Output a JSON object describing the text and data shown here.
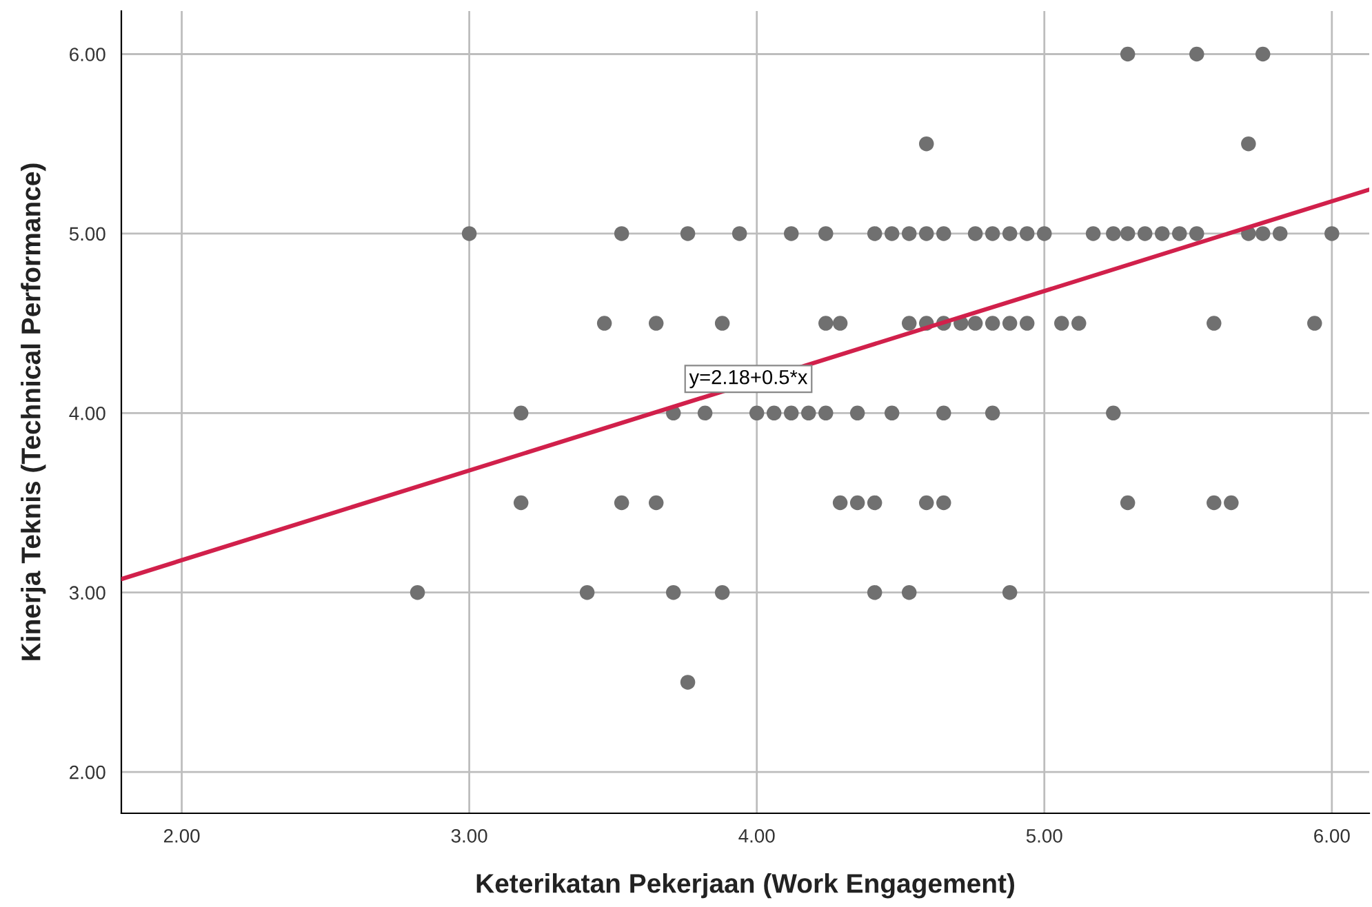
{
  "chart_data": {
    "type": "scatter",
    "xlabel": "Keterikatan Pekerjaan (Work Engagement)",
    "ylabel": "Kinerja Teknis (Technical Performance)",
    "xlim": [
      1.79,
      6.13
    ],
    "ylim": [
      1.77,
      6.24
    ],
    "xticks": [
      {
        "value": 2,
        "label": "2.00"
      },
      {
        "value": 3,
        "label": "3.00"
      },
      {
        "value": 4,
        "label": "4.00"
      },
      {
        "value": 5,
        "label": "5.00"
      },
      {
        "value": 6,
        "label": "6.00"
      }
    ],
    "yticks": [
      {
        "value": 2,
        "label": "2.00"
      },
      {
        "value": 3,
        "label": "3.00"
      },
      {
        "value": 4,
        "label": "4.00"
      },
      {
        "value": 5,
        "label": "5.00"
      },
      {
        "value": 6,
        "label": "6.00"
      }
    ],
    "grid": true,
    "series": [
      {
        "color": "#707070",
        "marker": "circle",
        "x": [
          5.29,
          5.53,
          5.76,
          4.59,
          5.71,
          3.0,
          3.53,
          3.76,
          3.94,
          4.12,
          4.24,
          4.41,
          4.47,
          4.53,
          4.59,
          4.65,
          4.76,
          4.82,
          4.88,
          4.94,
          5.0,
          5.17,
          5.24,
          5.29,
          5.35,
          5.41,
          5.47,
          5.53,
          5.71,
          5.76,
          5.82,
          6.0,
          3.47,
          3.65,
          3.88,
          4.24,
          4.29,
          4.53,
          4.59,
          4.65,
          4.71,
          4.76,
          4.82,
          4.88,
          4.94,
          5.06,
          5.12,
          5.59,
          5.94,
          3.18,
          3.71,
          3.82,
          4.0,
          4.06,
          4.12,
          4.18,
          4.24,
          4.35,
          4.47,
          4.65,
          4.82,
          5.24,
          3.18,
          3.53,
          3.65,
          4.29,
          4.35,
          4.41,
          4.59,
          4.65,
          5.29,
          5.59,
          5.65,
          2.82,
          3.41,
          3.71,
          3.88,
          4.41,
          4.53,
          4.88,
          3.76
        ],
        "values": [
          6,
          6,
          6,
          5.5,
          5.5,
          5,
          5,
          5,
          5,
          5,
          5,
          5,
          5,
          5,
          5,
          5,
          5,
          5,
          5,
          5,
          5,
          5,
          5,
          5,
          5,
          5,
          5,
          5,
          5,
          5,
          5,
          5,
          4.5,
          4.5,
          4.5,
          4.5,
          4.5,
          4.5,
          4.5,
          4.5,
          4.5,
          4.5,
          4.5,
          4.5,
          4.5,
          4.5,
          4.5,
          4.5,
          4.5,
          4,
          4,
          4,
          4,
          4,
          4,
          4,
          4,
          4,
          4,
          4,
          4,
          4,
          3.5,
          3.5,
          3.5,
          3.5,
          3.5,
          3.5,
          3.5,
          3.5,
          3.5,
          3.5,
          3.5,
          3,
          3,
          3,
          3,
          3,
          3,
          3,
          2.5
        ]
      },
      {
        "type": "line",
        "color": "#d1204b",
        "x": [
          1.79,
          6.13
        ],
        "values": [
          3.075,
          5.245
        ]
      }
    ],
    "annotations": [
      "y=2.18+0.5*x"
    ]
  }
}
